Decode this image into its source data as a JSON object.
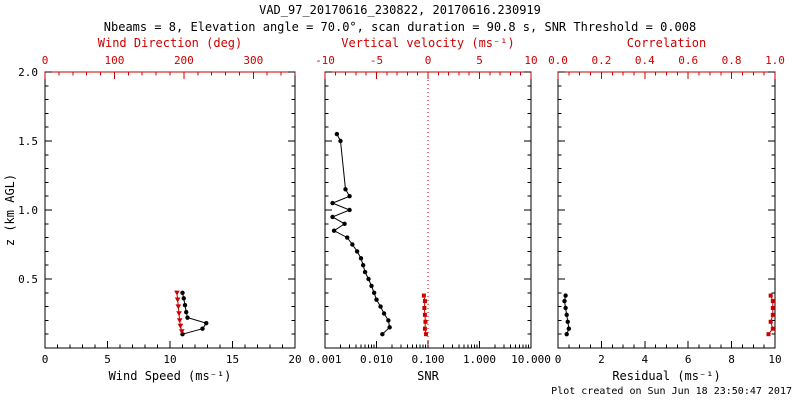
{
  "header": {
    "title": "VAD_97_20170616_230822, 20170616.230919",
    "subtitle": "Nbeams = 8, Elevation angle = 70.0°, scan duration = 90.8 s, SNR Threshold = 0.008"
  },
  "footer": {
    "credit": "Plot created on Sun Jun 18 23:50:47 2017"
  },
  "colors": {
    "accent_red": "#cc0000",
    "ink": "#000000",
    "background": "#ffffff"
  },
  "chart_data": [
    {
      "name": "wind-speed",
      "type": "scatter",
      "xlabel": "Wind Speed (ms⁻¹)",
      "ylabel": "z (km AGL)",
      "xaxis": {
        "lim": [
          0,
          20
        ],
        "minor": 1,
        "ticks": [
          {
            "v": 0,
            "label": "0"
          },
          {
            "v": 5,
            "label": "5"
          },
          {
            "v": 10,
            "label": "10"
          },
          {
            "v": 15,
            "label": "15"
          },
          {
            "v": 20,
            "label": "20"
          }
        ]
      },
      "top_axis": {
        "label": "Wind Direction (deg)",
        "lim": [
          0,
          360
        ],
        "minor": 20,
        "ticks": [
          {
            "v": 0,
            "label": "0"
          },
          {
            "v": 100,
            "label": "100"
          },
          {
            "v": 200,
            "label": "200"
          },
          {
            "v": 300,
            "label": "300"
          }
        ]
      },
      "yaxis": {
        "lim": [
          0,
          2
        ],
        "minor": 0.1,
        "ticks": [
          {
            "v": 0,
            "label": ""
          },
          {
            "v": 0.5,
            "label": "0.5"
          },
          {
            "v": 1,
            "label": "1.0"
          },
          {
            "v": 1.5,
            "label": "1.5"
          },
          {
            "v": 2,
            "label": "2.0"
          }
        ]
      },
      "series": [
        {
          "name": "wind-speed",
          "axis": "bottom",
          "color": "#000000",
          "marker": "circle",
          "points": [
            [
              11.0,
              0.1
            ],
            [
              12.6,
              0.14
            ],
            [
              12.9,
              0.18
            ],
            [
              11.4,
              0.22
            ],
            [
              11.3,
              0.26
            ],
            [
              11.2,
              0.31
            ],
            [
              11.1,
              0.36
            ],
            [
              11.0,
              0.4
            ]
          ]
        },
        {
          "name": "wind-direction",
          "axis": "top",
          "color": "#cc0000",
          "marker": "triangle",
          "points": [
            [
              197,
              0.12
            ],
            [
              195,
              0.16
            ],
            [
              194,
              0.2
            ],
            [
              193,
              0.25
            ],
            [
              192,
              0.3
            ],
            [
              191,
              0.35
            ],
            [
              190,
              0.4
            ]
          ]
        }
      ]
    },
    {
      "name": "snr",
      "type": "scatter",
      "xlabel": "SNR",
      "ylabel": "",
      "xaxis": {
        "lim": [
          0.001,
          10
        ],
        "log": true,
        "ticks": [
          {
            "v": 0.001,
            "label": "0.001"
          },
          {
            "v": 0.01,
            "label": "0.010"
          },
          {
            "v": 0.1,
            "label": "0.100"
          },
          {
            "v": 1,
            "label": "1.000"
          },
          {
            "v": 10,
            "label": "10.000"
          }
        ]
      },
      "top_axis": {
        "label": "Vertical velocity (ms⁻¹)",
        "lim": [
          -10,
          10
        ],
        "minor": 1,
        "ticks": [
          {
            "v": -10,
            "label": "-10"
          },
          {
            "v": -5,
            "label": "-5"
          },
          {
            "v": 0,
            "label": "0"
          },
          {
            "v": 5,
            "label": "5"
          },
          {
            "v": 10,
            "label": "10"
          }
        ]
      },
      "yaxis": {
        "lim": [
          0,
          2
        ],
        "minor": 0.1,
        "ticks": [
          {
            "v": 0,
            "label": ""
          },
          {
            "v": 0.5,
            "label": ""
          },
          {
            "v": 1,
            "label": ""
          },
          {
            "v": 1.5,
            "label": ""
          },
          {
            "v": 2,
            "label": ""
          }
        ]
      },
      "refline": {
        "axis": "top",
        "v": 0,
        "color": "#cc0000",
        "style": "dotted"
      },
      "series": [
        {
          "name": "snr",
          "axis": "bottom",
          "color": "#000000",
          "marker": "circle",
          "points": [
            [
              0.0017,
              1.55
            ],
            [
              0.002,
              1.5
            ],
            [
              0.0025,
              1.15
            ],
            [
              0.003,
              1.1
            ],
            [
              0.0014,
              1.05
            ],
            [
              0.003,
              1.0
            ],
            [
              0.0014,
              0.95
            ],
            [
              0.0024,
              0.9
            ],
            [
              0.0015,
              0.85
            ],
            [
              0.0027,
              0.8
            ],
            [
              0.0034,
              0.75
            ],
            [
              0.0042,
              0.7
            ],
            [
              0.005,
              0.65
            ],
            [
              0.0055,
              0.6
            ],
            [
              0.006,
              0.55
            ],
            [
              0.007,
              0.5
            ],
            [
              0.008,
              0.45
            ],
            [
              0.009,
              0.4
            ],
            [
              0.01,
              0.35
            ],
            [
              0.012,
              0.3
            ],
            [
              0.014,
              0.25
            ],
            [
              0.017,
              0.2
            ],
            [
              0.018,
              0.15
            ],
            [
              0.013,
              0.1
            ]
          ]
        },
        {
          "name": "vertical-velocity",
          "axis": "top",
          "color": "#cc0000",
          "marker": "square",
          "points": [
            [
              -0.4,
              0.38
            ],
            [
              -0.3,
              0.34
            ],
            [
              -0.35,
              0.29
            ],
            [
              -0.3,
              0.24
            ],
            [
              -0.25,
              0.19
            ],
            [
              -0.3,
              0.14
            ],
            [
              -0.2,
              0.1
            ]
          ]
        }
      ]
    },
    {
      "name": "residual",
      "type": "scatter",
      "xlabel": "Residual (ms⁻¹)",
      "ylabel": "",
      "xaxis": {
        "lim": [
          0,
          10
        ],
        "minor": 0.5,
        "ticks": [
          {
            "v": 0,
            "label": "0"
          },
          {
            "v": 2,
            "label": "2"
          },
          {
            "v": 4,
            "label": "4"
          },
          {
            "v": 6,
            "label": "6"
          },
          {
            "v": 8,
            "label": "8"
          },
          {
            "v": 10,
            "label": "10"
          }
        ]
      },
      "top_axis": {
        "label": "Correlation",
        "lim": [
          0,
          1
        ],
        "minor": 0.05,
        "ticks": [
          {
            "v": 0,
            "label": "0.0"
          },
          {
            "v": 0.2,
            "label": "0.2"
          },
          {
            "v": 0.4,
            "label": "0.4"
          },
          {
            "v": 0.6,
            "label": "0.6"
          },
          {
            "v": 0.8,
            "label": "0.8"
          },
          {
            "v": 1,
            "label": "1.0"
          }
        ]
      },
      "yaxis": {
        "lim": [
          0,
          2
        ],
        "minor": 0.1,
        "ticks": [
          {
            "v": 0,
            "label": ""
          },
          {
            "v": 0.5,
            "label": ""
          },
          {
            "v": 1,
            "label": ""
          },
          {
            "v": 1.5,
            "label": ""
          },
          {
            "v": 2,
            "label": ""
          }
        ]
      },
      "series": [
        {
          "name": "residual",
          "axis": "bottom",
          "color": "#000000",
          "marker": "circle",
          "points": [
            [
              0.35,
              0.38
            ],
            [
              0.3,
              0.34
            ],
            [
              0.35,
              0.29
            ],
            [
              0.4,
              0.24
            ],
            [
              0.45,
              0.19
            ],
            [
              0.5,
              0.14
            ],
            [
              0.4,
              0.1
            ]
          ]
        },
        {
          "name": "correlation",
          "axis": "top",
          "color": "#cc0000",
          "marker": "square",
          "points": [
            [
              0.98,
              0.38
            ],
            [
              0.99,
              0.34
            ],
            [
              0.99,
              0.29
            ],
            [
              0.99,
              0.24
            ],
            [
              0.98,
              0.19
            ],
            [
              0.99,
              0.14
            ],
            [
              0.97,
              0.1
            ]
          ]
        }
      ]
    }
  ]
}
